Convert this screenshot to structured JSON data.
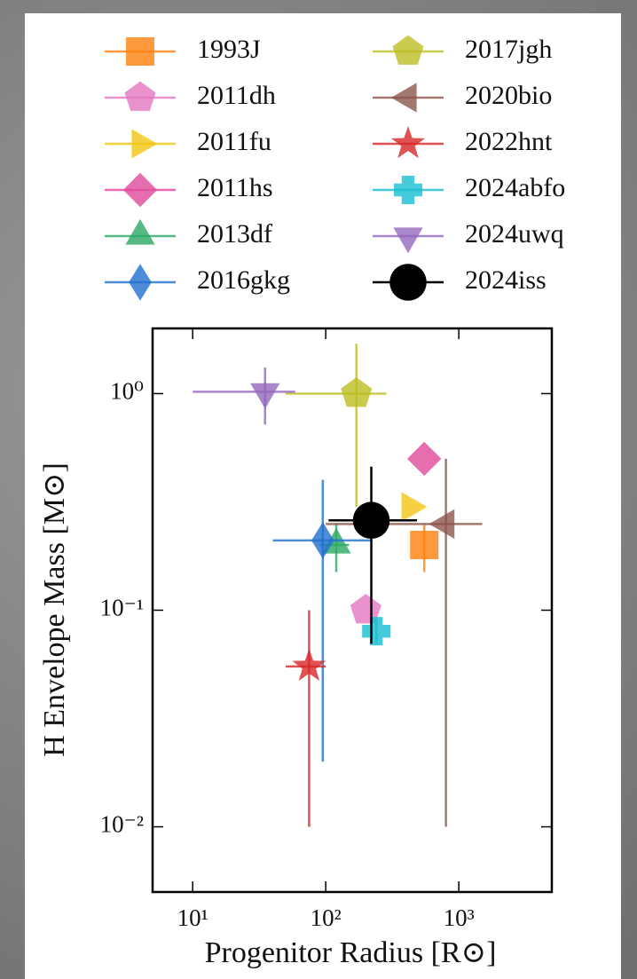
{
  "chart_data": {
    "type": "scatter",
    "xlabel": "Progenitor Radius [R⊙]",
    "ylabel": "H Envelope Mass [M⊙]",
    "xscale": "log",
    "yscale": "log",
    "xlim": [
      5,
      5000
    ],
    "ylim": [
      0.005,
      2
    ],
    "xticks": [
      {
        "value": 10,
        "label": "10¹"
      },
      {
        "value": 100,
        "label": "10²"
      },
      {
        "value": 1000,
        "label": "10³"
      }
    ],
    "yticks": [
      {
        "value": 0.01,
        "label": "10⁻²"
      },
      {
        "value": 0.1,
        "label": "10⁻¹"
      },
      {
        "value": 1,
        "label": "10⁰"
      }
    ],
    "legend": "top",
    "legend_columns": 2,
    "series": [
      {
        "name": "1993J",
        "color": "#ff7f0e",
        "marker": "square",
        "x": [
          550
        ],
        "values": [
          0.2
        ],
        "yerr": [
          [
            0.05,
            0.05
          ]
        ]
      },
      {
        "name": "2011dh",
        "color": "#e377c2",
        "marker": "pentagon",
        "x": [
          200
        ],
        "values": [
          0.1
        ]
      },
      {
        "name": "2011fu",
        "color": "#f2c511",
        "marker": "triangle-right",
        "x": [
          430
        ],
        "values": [
          0.3
        ]
      },
      {
        "name": "2011hs",
        "color": "#e0489a",
        "marker": "diamond",
        "x": [
          550
        ],
        "values": [
          0.5
        ]
      },
      {
        "name": "2013df",
        "color": "#2ca864",
        "marker": "triangle-up",
        "x": [
          120
        ],
        "values": [
          0.2
        ],
        "xerr": [
          [
            30,
            30
          ]
        ],
        "yerr": [
          [
            0.05,
            0.05
          ]
        ]
      },
      {
        "name": "2016gkg",
        "color": "#1f6fd0",
        "marker": "thin-diamond",
        "x": [
          95
        ],
        "values": [
          0.21
        ],
        "xerr": [
          [
            55,
            130
          ]
        ],
        "yerr": [
          [
            0.19,
            0.19
          ]
        ]
      },
      {
        "name": "2017jgh",
        "color": "#bcbd22",
        "marker": "pentagon",
        "x": [
          170
        ],
        "values": [
          1.0
        ],
        "xerr": [
          [
            120,
            115
          ]
        ],
        "yerr": [
          [
            0.7,
            0.7
          ]
        ]
      },
      {
        "name": "2020bio",
        "color": "#8c564b",
        "marker": "triangle-left",
        "x": [
          800
        ],
        "values": [
          0.25
        ],
        "xerr": [
          [
            700,
            700
          ]
        ],
        "yerr": [
          [
            0.24,
            0.25
          ]
        ]
      },
      {
        "name": "2022hnt",
        "color": "#d62728",
        "marker": "star",
        "x": [
          75
        ],
        "values": [
          0.055
        ],
        "xerr": [
          [
            25,
            25
          ]
        ],
        "yerr": [
          [
            0.045,
            0.045
          ]
        ]
      },
      {
        "name": "2024abfo",
        "color": "#17becf",
        "marker": "plus",
        "x": [
          240
        ],
        "values": [
          0.08
        ],
        "yerr": [
          [
            0.01,
            0.01
          ]
        ]
      },
      {
        "name": "2024uwq",
        "color": "#9467bd",
        "marker": "triangle-down",
        "x": [
          35
        ],
        "values": [
          1.02
        ],
        "xerr": [
          [
            25,
            24
          ]
        ],
        "yerr": [
          [
            0.3,
            0.3
          ]
        ]
      },
      {
        "name": "2024iss",
        "color": "#000000",
        "marker": "circle",
        "x": [
          220
        ],
        "values": [
          0.26
        ],
        "xerr": [
          [
            115,
            265
          ]
        ],
        "yerr": [
          [
            0.19,
            0.2
          ]
        ]
      }
    ]
  }
}
